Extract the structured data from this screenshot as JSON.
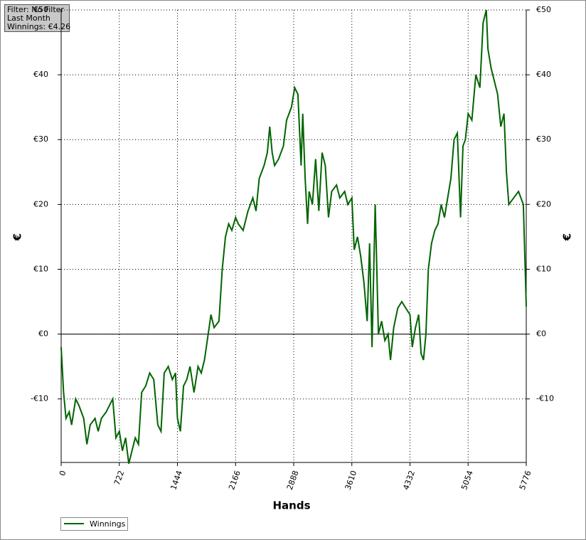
{
  "chart_data": {
    "type": "line",
    "annotations": [
      "Filter: No Filter",
      "Last Month",
      "Winnings: €4.26"
    ],
    "xlabel": "Hands",
    "ylabel": "€",
    "xlim": [
      0,
      5776
    ],
    "xticks": [
      0,
      722,
      1444,
      2166,
      2888,
      3610,
      4332,
      5054,
      5776
    ],
    "ylim": [
      -19.8,
      50
    ],
    "yticks": [
      {
        "value": -10,
        "label": "-€10"
      },
      {
        "value": 0,
        "label": "€0"
      },
      {
        "value": 10,
        "label": "€10"
      },
      {
        "value": 20,
        "label": "€20"
      },
      {
        "value": 30,
        "label": "€30"
      },
      {
        "value": 40,
        "label": "€40"
      },
      {
        "value": 50,
        "label": "€50"
      }
    ],
    "grid": true,
    "legend": "bottom-left",
    "x": [
      0,
      30,
      60,
      100,
      130,
      180,
      220,
      280,
      320,
      360,
      420,
      460,
      500,
      560,
      600,
      640,
      680,
      722,
      760,
      800,
      840,
      880,
      920,
      960,
      1000,
      1050,
      1100,
      1150,
      1200,
      1240,
      1280,
      1330,
      1380,
      1420,
      1444,
      1480,
      1520,
      1560,
      1600,
      1650,
      1700,
      1740,
      1780,
      1820,
      1860,
      1900,
      1960,
      2000,
      2040,
      2080,
      2120,
      2166,
      2200,
      2260,
      2320,
      2380,
      2420,
      2460,
      2520,
      2560,
      2590,
      2620,
      2650,
      2700,
      2760,
      2800,
      2860,
      2900,
      2940,
      2980,
      3000,
      3030,
      3060,
      3080,
      3120,
      3160,
      3200,
      3240,
      3280,
      3320,
      3360,
      3420,
      3460,
      3520,
      3560,
      3610,
      3640,
      3680,
      3720,
      3760,
      3800,
      3830,
      3860,
      3900,
      3940,
      3980,
      4020,
      4060,
      4090,
      4130,
      4180,
      4230,
      4280,
      4332,
      4360,
      4400,
      4440,
      4470,
      4500,
      4530,
      4560,
      4600,
      4640,
      4680,
      4720,
      4760,
      4800,
      4840,
      4880,
      4920,
      4960,
      4990,
      5020,
      5054,
      5100,
      5150,
      5200,
      5240,
      5280,
      5300,
      5340,
      5380,
      5420,
      5460,
      5500,
      5530,
      5560,
      5620,
      5680,
      5740,
      5776
    ],
    "series": [
      {
        "name": "Winnings",
        "color": "#006400",
        "values": [
          -2,
          -9,
          -13,
          -12,
          -14,
          -10,
          -11,
          -13,
          -17,
          -14,
          -13,
          -15,
          -13,
          -12,
          -11,
          -10,
          -16,
          -15,
          -18,
          -16,
          -20,
          -18,
          -16,
          -17,
          -9,
          -8,
          -6,
          -7,
          -14,
          -15,
          -6,
          -5,
          -7,
          -6,
          -13,
          -15,
          -8,
          -7,
          -5,
          -9,
          -5,
          -6,
          -4,
          -0.5,
          3,
          1,
          2,
          10,
          15,
          17,
          16,
          18,
          17,
          16,
          19,
          21,
          19,
          24,
          26,
          28,
          32,
          28,
          26,
          27,
          29,
          33,
          35,
          38,
          37,
          26,
          34,
          24,
          17,
          22,
          20,
          27,
          19,
          28,
          26,
          18,
          22,
          23,
          21,
          22,
          20,
          21,
          13,
          15,
          12,
          8,
          2,
          14,
          -2,
          20,
          0,
          2,
          -1,
          0,
          -4,
          1,
          4,
          5,
          4,
          3,
          -2,
          1,
          3,
          -3,
          -4,
          0,
          10,
          14,
          16,
          17,
          20,
          18,
          21,
          24,
          30,
          31,
          18,
          29,
          30,
          34,
          33,
          40,
          38,
          48,
          50,
          44,
          41,
          39,
          37,
          32,
          34,
          25,
          20,
          21,
          22,
          20,
          4.26
        ]
      }
    ]
  }
}
